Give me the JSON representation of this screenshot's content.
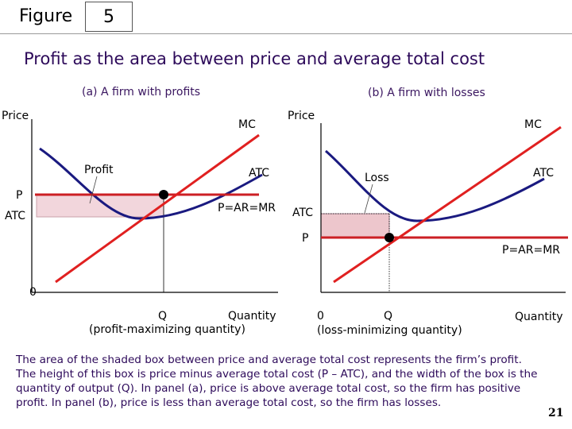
{
  "header": {
    "figure_word": "Figure",
    "figure_number": "5",
    "title": "Profit as the area between price and average total cost"
  },
  "panel_a": {
    "title": "(a) A firm with profits",
    "y_axis_label": "Price",
    "x_axis_label": "Quantity",
    "origin_label": "0",
    "mc_label": "MC",
    "atc_curve_label": "ATC",
    "demand_label": "P=AR=MR",
    "price_level_label": "P",
    "atc_level_label": "ATC",
    "q_label": "Q",
    "q_note": "(profit-maximizing quantity)",
    "area_label": "Profit"
  },
  "panel_b": {
    "title": "(b) A firm with losses",
    "y_axis_label": "Price",
    "x_axis_label": "Quantity",
    "origin_label": "0",
    "mc_label": "MC",
    "atc_curve_label": "ATC",
    "demand_label": "P=AR=MR",
    "price_level_label": "P",
    "atc_level_label": "ATC",
    "q_label": "Q",
    "q_note": "(loss-minimizing quantity)",
    "area_label": "Loss"
  },
  "caption": "The area of the shaded box between price and average total cost represents the firm’s profit. The height of this box is price minus average total cost (P – ATC), and the width of the box is the quantity of output (Q). In panel (a), price is above average total cost, so the firm has positive profit. In panel (b), price is less than average total cost, so the firm has losses.",
  "page_number": "21",
  "colors": {
    "mc_line": "#e02020",
    "price_line": "#cc1f24",
    "atc_curve": "#1a1a80",
    "shaded_area": "#f2d6dc",
    "text_accent": "#2d0a5a"
  }
}
